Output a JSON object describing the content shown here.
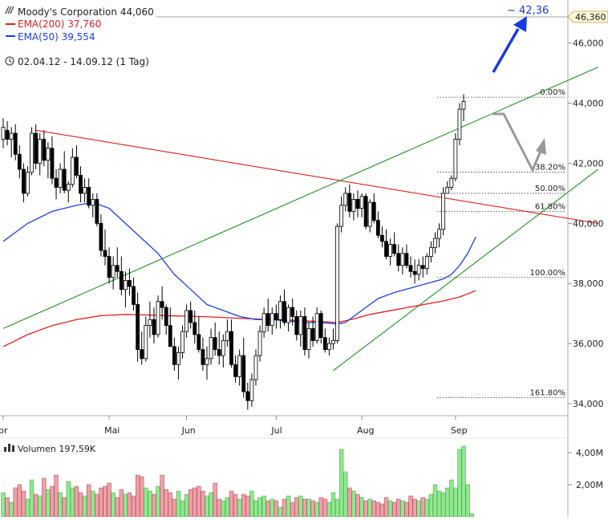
{
  "chart_data": {
    "type": "candlestick",
    "header": {
      "title": "Moody's Corporation 44,060",
      "ema200_label": "EMA(200) 37,760",
      "ema50_label": "EMA(50) 39,554",
      "period": "02.04.12 - 14.09.12 (1 Tag)",
      "ema200_color": "#e02020",
      "ema50_color": "#2040e0"
    },
    "y_axis": {
      "min": 33.6,
      "max": 46.9,
      "ticks": [
        "46,000",
        "44,000",
        "42,000",
        "40,000",
        "38,000",
        "36,000",
        "34,000"
      ],
      "tick_values": [
        46,
        44,
        42,
        40,
        38,
        36,
        34
      ],
      "top_marker_label": "46,360",
      "top_marker_value": 46.36
    },
    "x_axis": {
      "labels": [
        "pr",
        "Mai",
        "Jun",
        "Jul",
        "Aug",
        "Sep"
      ],
      "label_index": [
        0,
        26,
        45,
        67,
        88,
        111
      ]
    },
    "target": {
      "label": "~ 42,36",
      "color": "#1a3be0"
    },
    "fibonacci": [
      {
        "label": "0.00%",
        "value": 44.2
      },
      {
        "label": "38.20%",
        "value": 41.7
      },
      {
        "label": "50.00%",
        "value": 41.0
      },
      {
        "label": "61.80%",
        "value": 40.4
      },
      {
        "label": "100.00%",
        "value": 38.2
      },
      {
        "label": "161.80%",
        "value": 34.2
      }
    ],
    "price_candles": [
      [
        42.8,
        43.5,
        42.5,
        43.2
      ],
      [
        43.1,
        43.4,
        42.6,
        42.8
      ],
      [
        42.8,
        43.2,
        42.2,
        43.0
      ],
      [
        43.0,
        43.3,
        42.1,
        42.3
      ],
      [
        42.3,
        42.6,
        41.5,
        41.8
      ],
      [
        41.8,
        42.0,
        40.7,
        41.0
      ],
      [
        41.0,
        41.9,
        40.9,
        41.7
      ],
      [
        41.7,
        43.2,
        41.6,
        43.0
      ],
      [
        43.0,
        43.3,
        41.8,
        42.0
      ],
      [
        42.0,
        43.0,
        41.6,
        42.8
      ],
      [
        42.8,
        43.1,
        41.9,
        42.1
      ],
      [
        42.1,
        42.7,
        41.5,
        42.5
      ],
      [
        42.5,
        42.9,
        41.3,
        41.5
      ],
      [
        41.5,
        41.8,
        40.8,
        41.2
      ],
      [
        41.2,
        42.0,
        41.0,
        41.8
      ],
      [
        41.8,
        42.4,
        41.0,
        41.1
      ],
      [
        41.1,
        41.4,
        40.7,
        41.3
      ],
      [
        41.3,
        42.5,
        41.2,
        42.2
      ],
      [
        42.2,
        42.6,
        41.5,
        41.6
      ],
      [
        41.6,
        41.9,
        40.7,
        41.0
      ],
      [
        41.0,
        41.5,
        40.7,
        41.2
      ],
      [
        41.2,
        41.5,
        40.5,
        40.6
      ],
      [
        40.6,
        41.0,
        40.2,
        40.8
      ],
      [
        40.8,
        41.0,
        39.9,
        40.0
      ],
      [
        40.0,
        40.3,
        38.9,
        39.1
      ],
      [
        39.1,
        39.8,
        38.6,
        38.9
      ],
      [
        38.9,
        39.2,
        38.0,
        38.2
      ],
      [
        38.2,
        38.9,
        37.8,
        38.6
      ],
      [
        38.6,
        39.2,
        38.2,
        38.4
      ],
      [
        38.4,
        38.9,
        37.6,
        37.8
      ],
      [
        37.8,
        38.4,
        37.2,
        38.1
      ],
      [
        38.1,
        38.5,
        37.6,
        37.9
      ],
      [
        37.9,
        38.2,
        37.1,
        37.3
      ],
      [
        37.3,
        37.7,
        35.4,
        35.8
      ],
      [
        35.8,
        36.4,
        35.3,
        35.5
      ],
      [
        35.5,
        36.9,
        35.4,
        36.6
      ],
      [
        36.6,
        37.4,
        36.2,
        36.8
      ],
      [
        36.8,
        37.2,
        36.0,
        36.3
      ],
      [
        36.3,
        37.6,
        36.2,
        37.4
      ],
      [
        37.4,
        37.9,
        36.8,
        37.2
      ],
      [
        37.2,
        37.3,
        36.3,
        36.6
      ],
      [
        36.6,
        37.2,
        35.9,
        35.9
      ],
      [
        35.9,
        36.2,
        35.1,
        35.3
      ],
      [
        35.3,
        35.9,
        34.8,
        35.7
      ],
      [
        35.7,
        36.6,
        35.5,
        36.4
      ],
      [
        36.4,
        37.3,
        36.2,
        37.1
      ],
      [
        37.1,
        37.4,
        36.5,
        36.7
      ],
      [
        36.7,
        37.1,
        36.0,
        36.3
      ],
      [
        36.3,
        36.9,
        35.7,
        35.8
      ],
      [
        35.8,
        36.2,
        35.1,
        35.3
      ],
      [
        35.3,
        35.9,
        34.8,
        35.5
      ],
      [
        35.5,
        36.5,
        35.3,
        36.2
      ],
      [
        36.2,
        36.7,
        35.6,
        35.8
      ],
      [
        35.8,
        36.4,
        35.3,
        35.6
      ],
      [
        35.6,
        36.3,
        35.2,
        36.1
      ],
      [
        36.1,
        36.8,
        35.9,
        36.4
      ],
      [
        36.4,
        36.8,
        35.2,
        35.3
      ],
      [
        35.3,
        35.6,
        34.7,
        34.9
      ],
      [
        34.9,
        35.8,
        34.6,
        35.6
      ],
      [
        35.6,
        36.2,
        34.2,
        34.4
      ],
      [
        34.4,
        34.7,
        33.8,
        34.1
      ],
      [
        34.1,
        35.0,
        33.9,
        34.8
      ],
      [
        34.8,
        35.8,
        34.6,
        35.6
      ],
      [
        35.6,
        36.6,
        35.4,
        36.4
      ],
      [
        36.4,
        37.2,
        36.2,
        37.0
      ],
      [
        37.0,
        37.5,
        36.4,
        36.6
      ],
      [
        36.6,
        37.2,
        36.3,
        37.0
      ],
      [
        37.0,
        37.3,
        36.5,
        36.8
      ],
      [
        36.8,
        37.6,
        36.5,
        37.4
      ],
      [
        37.4,
        37.8,
        36.6,
        36.7
      ],
      [
        36.7,
        37.3,
        36.4,
        37.2
      ],
      [
        37.2,
        37.5,
        36.6,
        36.9
      ],
      [
        36.9,
        37.1,
        36.1,
        36.3
      ],
      [
        36.3,
        37.1,
        35.9,
        36.9
      ],
      [
        36.9,
        37.2,
        35.6,
        35.8
      ],
      [
        35.8,
        36.7,
        35.5,
        36.5
      ],
      [
        36.5,
        36.9,
        35.9,
        36.1
      ],
      [
        36.1,
        37.2,
        36.0,
        37.0
      ],
      [
        37.0,
        37.1,
        36.0,
        36.2
      ],
      [
        36.2,
        36.5,
        35.7,
        35.8
      ],
      [
        35.8,
        36.2,
        35.6,
        36.0
      ],
      [
        36.0,
        36.5,
        35.8,
        36.1
      ],
      [
        36.1,
        40.0,
        36.0,
        39.9
      ],
      [
        39.9,
        40.9,
        39.7,
        40.6
      ],
      [
        40.6,
        41.2,
        40.4,
        41.0
      ],
      [
        41.0,
        41.3,
        40.2,
        40.4
      ],
      [
        40.4,
        41.0,
        40.1,
        40.8
      ],
      [
        40.8,
        41.1,
        40.2,
        40.5
      ],
      [
        40.5,
        41.0,
        40.2,
        40.9
      ],
      [
        40.9,
        41.0,
        39.8,
        39.9
      ],
      [
        39.9,
        40.8,
        39.7,
        40.7
      ],
      [
        40.7,
        41.0,
        40.0,
        40.1
      ],
      [
        40.1,
        40.4,
        39.5,
        39.6
      ],
      [
        39.6,
        39.9,
        39.2,
        39.4
      ],
      [
        39.4,
        39.8,
        38.8,
        38.9
      ],
      [
        38.9,
        39.5,
        38.6,
        39.3
      ],
      [
        39.3,
        39.7,
        38.9,
        39.0
      ],
      [
        39.0,
        39.3,
        38.4,
        38.6
      ],
      [
        38.6,
        39.2,
        38.3,
        39.0
      ],
      [
        39.0,
        39.3,
        38.5,
        38.6
      ],
      [
        38.6,
        38.9,
        38.2,
        38.4
      ],
      [
        38.4,
        38.8,
        38.0,
        38.3
      ],
      [
        38.3,
        38.8,
        38.1,
        38.6
      ],
      [
        38.6,
        38.9,
        38.2,
        38.5
      ],
      [
        38.5,
        39.0,
        38.3,
        38.9
      ],
      [
        38.9,
        39.4,
        38.7,
        39.2
      ],
      [
        39.2,
        39.7,
        39.0,
        39.5
      ],
      [
        39.5,
        40.0,
        39.2,
        39.8
      ],
      [
        39.8,
        41.2,
        39.6,
        41.0
      ],
      [
        41.0,
        41.4,
        41.1,
        41.2
      ],
      [
        41.2,
        41.6,
        41.1,
        41.5
      ],
      [
        41.5,
        43.0,
        41.4,
        42.8
      ],
      [
        42.8,
        44.0,
        42.6,
        43.8
      ],
      [
        43.8,
        44.3,
        43.4,
        44.06
      ]
    ],
    "ema50": [
      [
        0,
        39.4
      ],
      [
        6,
        40.0
      ],
      [
        12,
        40.4
      ],
      [
        18,
        40.6
      ],
      [
        22,
        40.7
      ],
      [
        26,
        40.5
      ],
      [
        30,
        40.0
      ],
      [
        34,
        39.5
      ],
      [
        38,
        39.0
      ],
      [
        42,
        38.3
      ],
      [
        46,
        37.8
      ],
      [
        50,
        37.3
      ],
      [
        54,
        37.1
      ],
      [
        58,
        36.9
      ],
      [
        62,
        36.8
      ],
      [
        66,
        36.8
      ],
      [
        70,
        36.75
      ],
      [
        74,
        36.7
      ],
      [
        78,
        36.7
      ],
      [
        82,
        36.65
      ],
      [
        84,
        36.7
      ],
      [
        88,
        37.1
      ],
      [
        92,
        37.5
      ],
      [
        96,
        37.7
      ],
      [
        100,
        37.85
      ],
      [
        104,
        38.0
      ],
      [
        108,
        38.15
      ],
      [
        110,
        38.3
      ],
      [
        112,
        38.6
      ],
      [
        114,
        39.0
      ],
      [
        116,
        39.55
      ]
    ],
    "ema200": [
      [
        0,
        35.9
      ],
      [
        6,
        36.3
      ],
      [
        12,
        36.6
      ],
      [
        18,
        36.8
      ],
      [
        24,
        36.93
      ],
      [
        30,
        36.97
      ],
      [
        36,
        36.95
      ],
      [
        42,
        36.92
      ],
      [
        48,
        36.9
      ],
      [
        54,
        36.87
      ],
      [
        60,
        36.83
      ],
      [
        66,
        36.8
      ],
      [
        72,
        36.77
      ],
      [
        78,
        36.73
      ],
      [
        82,
        36.7
      ],
      [
        86,
        36.82
      ],
      [
        90,
        36.97
      ],
      [
        96,
        37.12
      ],
      [
        102,
        37.27
      ],
      [
        108,
        37.42
      ],
      [
        112,
        37.55
      ],
      [
        116,
        37.76
      ]
    ],
    "trendlines": [
      {
        "name": "resistance",
        "color": "#e02020",
        "from": [
          8,
          43.1
        ],
        "to": [
          146,
          40.0
        ]
      },
      {
        "name": "upper-channel",
        "color": "#209020",
        "from": [
          0,
          36.5
        ],
        "to": [
          146,
          45.2
        ]
      },
      {
        "name": "lower-channel",
        "color": "#209020",
        "from": [
          81,
          35.1
        ],
        "to": [
          146,
          41.8
        ]
      }
    ],
    "volume": {
      "label": "Volumen 197,59K",
      "ticks": [
        "4,00M",
        "2,00M"
      ],
      "tick_values": [
        4,
        2
      ],
      "max": 4.8,
      "bars": [
        1.5,
        1.2,
        0.9,
        1.8,
        2.0,
        1.6,
        1.1,
        2.3,
        1.4,
        1.3,
        2.4,
        1.7,
        1.9,
        2.6,
        1.5,
        1.2,
        2.2,
        1.8,
        1.9,
        1.5,
        1.3,
        2.0,
        1.6,
        1.4,
        1.8,
        1.9,
        2.1,
        1.5,
        1.2,
        1.7,
        1.4,
        1.5,
        1.3,
        2.6,
        2.5,
        1.8,
        1.6,
        1.4,
        1.9,
        2.6,
        1.7,
        1.5,
        1.1,
        1.6,
        1.0,
        1.4,
        1.7,
        1.8,
        1.9,
        1.6,
        1.3,
        1.5,
        2.1,
        1.1,
        1.0,
        1.2,
        1.6,
        1.4,
        1.1,
        1.4,
        1.3,
        1.6,
        1.0,
        1.2,
        1.3,
        1.0,
        1.1,
        1.0,
        0.6,
        1.1,
        1.3,
        0.9,
        1.2,
        1.3,
        1.1,
        1.1,
        1.0,
        0.9,
        1.2,
        1.1,
        0.9,
        1.5,
        1.1,
        4.2,
        2.8,
        1.8,
        1.6,
        1.4,
        1.2,
        1.0,
        1.1,
        1.0,
        0.9,
        0.8,
        1.2,
        1.0,
        0.9,
        1.1,
        1.0,
        0.9,
        1.3,
        1.1,
        1.0,
        1.2,
        1.1,
        1.4,
        2.0,
        1.6,
        1.5,
        1.8,
        2.3,
        1.8,
        4.2,
        4.4,
        2.0,
        0.2
      ]
    }
  }
}
